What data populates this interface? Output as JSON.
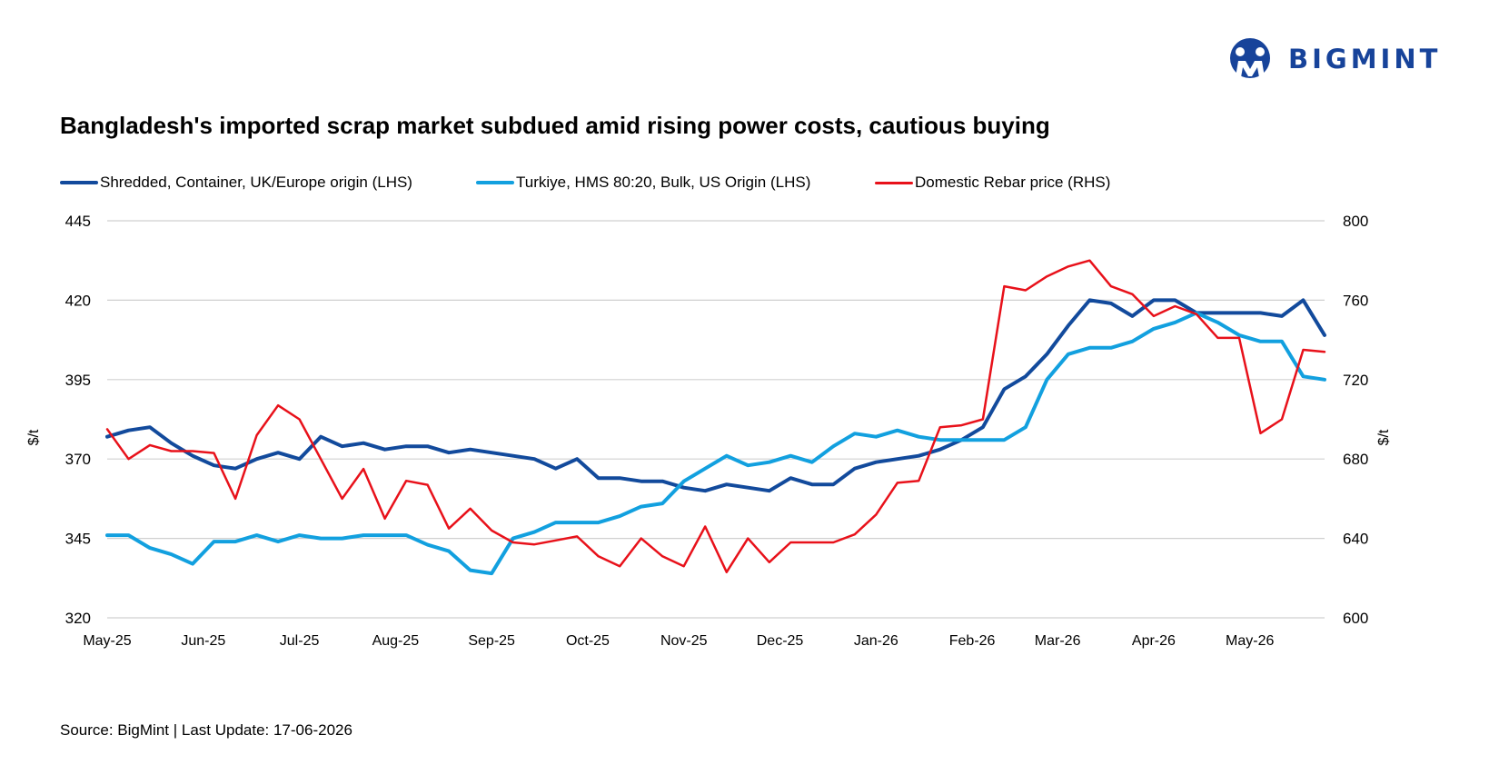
{
  "brand": {
    "name": "BIGMINT",
    "color": "#17439a"
  },
  "title": "Bangladesh's imported scrap market subdued amid rising power costs, cautious buying",
  "source": "Source: BigMint | Last Update: 17-06-2026",
  "chart_data": {
    "type": "line",
    "title": "Bangladesh's imported scrap market subdued amid rising power costs, cautious buying",
    "ylabel": "$/t",
    "y2label": "$/t",
    "ylim": [
      320,
      445
    ],
    "y2lim": [
      600,
      800
    ],
    "yticks": [
      320,
      345,
      370,
      395,
      420,
      445
    ],
    "y2ticks": [
      600,
      640,
      680,
      720,
      760,
      800
    ],
    "grid": true,
    "legend_position": "top",
    "xtick_labels": [
      "May-25",
      "Jun-25",
      "Jul-25",
      "Aug-25",
      "Sep-25",
      "Oct-25",
      "Nov-25",
      "Dec-25",
      "Jan-26",
      "Feb-26",
      "Mar-26",
      "Apr-26",
      "May-26"
    ],
    "xtick_positions": [
      0,
      4.5,
      9,
      13.5,
      18,
      22.5,
      27,
      31.5,
      36,
      40.5,
      44.5,
      49,
      53.5
    ],
    "series": [
      {
        "name": "Shredded, Container, UK/Europe origin (LHS)",
        "axis": "left",
        "color": "#124a9c",
        "width": 4,
        "x": [
          0,
          1,
          2,
          3,
          4,
          5,
          6,
          7,
          8,
          9,
          10,
          11,
          12,
          13,
          14,
          15,
          16,
          17,
          18,
          19,
          20,
          21,
          22,
          23,
          24,
          25,
          26,
          27,
          28,
          29,
          30,
          31,
          32,
          33,
          34,
          35,
          36,
          37,
          38,
          39,
          40,
          41,
          42,
          43,
          44,
          45,
          46,
          47,
          48,
          49,
          50,
          51,
          52,
          53,
          54,
          55,
          56,
          57
        ],
        "values": [
          377,
          379,
          380,
          375,
          371,
          368,
          367,
          370,
          372,
          370,
          377,
          374,
          375,
          373,
          374,
          374,
          372,
          373,
          372,
          371,
          370,
          367,
          370,
          364,
          364,
          363,
          363,
          361,
          360,
          362,
          361,
          360,
          364,
          362,
          362,
          367,
          369,
          370,
          371,
          373,
          376,
          380,
          392,
          396,
          403,
          412,
          420,
          419,
          415,
          420,
          420,
          416,
          416,
          416,
          416,
          415,
          420,
          409
        ]
      },
      {
        "name": "Turkiye, HMS 80:20, Bulk, US Origin (LHS)",
        "axis": "left",
        "color": "#12a0df",
        "width": 4,
        "x": [
          0,
          1,
          2,
          3,
          4,
          5,
          6,
          7,
          8,
          9,
          10,
          11,
          12,
          13,
          14,
          15,
          16,
          17,
          18,
          19,
          20,
          21,
          22,
          23,
          24,
          25,
          26,
          27,
          28,
          29,
          30,
          31,
          32,
          33,
          34,
          35,
          36,
          37,
          38,
          39,
          40,
          41,
          42,
          43,
          44,
          45,
          46,
          47,
          48,
          49,
          50,
          51,
          52,
          53,
          54,
          55,
          56,
          57
        ],
        "values": [
          346,
          346,
          342,
          340,
          337,
          344,
          344,
          346,
          344,
          346,
          345,
          345,
          346,
          346,
          346,
          343,
          341,
          335,
          334,
          345,
          347,
          350,
          350,
          350,
          352,
          355,
          356,
          363,
          367,
          371,
          368,
          369,
          371,
          369,
          374,
          378,
          377,
          379,
          377,
          376,
          376,
          376,
          376,
          380,
          395,
          403,
          405,
          405,
          407,
          411,
          413,
          416,
          413,
          409,
          407,
          407,
          396,
          395
        ]
      },
      {
        "name": "Domestic Rebar price (RHS)",
        "axis": "right",
        "color": "#e8111a",
        "width": 2.5,
        "x": [
          0,
          1,
          2,
          3,
          4,
          5,
          6,
          7,
          8,
          9,
          10,
          11,
          12,
          13,
          14,
          15,
          16,
          17,
          18,
          19,
          20,
          21,
          22,
          23,
          24,
          25,
          26,
          27,
          28,
          29,
          30,
          31,
          32,
          33,
          34,
          35,
          36,
          37,
          38,
          39,
          40,
          41,
          42,
          43,
          44,
          45,
          46,
          47,
          48,
          49,
          50,
          51,
          52,
          53,
          54,
          55,
          56,
          57
        ],
        "values": [
          695,
          680,
          687,
          684,
          684,
          683,
          660,
          692,
          707,
          700,
          680,
          660,
          675,
          650,
          669,
          667,
          645,
          655,
          644,
          638,
          637,
          639,
          641,
          631,
          626,
          640,
          631,
          626,
          646,
          623,
          640,
          628,
          638,
          638,
          638,
          642,
          652,
          668,
          669,
          696,
          697,
          700,
          767,
          765,
          772,
          777,
          780,
          767,
          763,
          752,
          757,
          753,
          741,
          741,
          693,
          700,
          735,
          734
        ]
      }
    ]
  }
}
